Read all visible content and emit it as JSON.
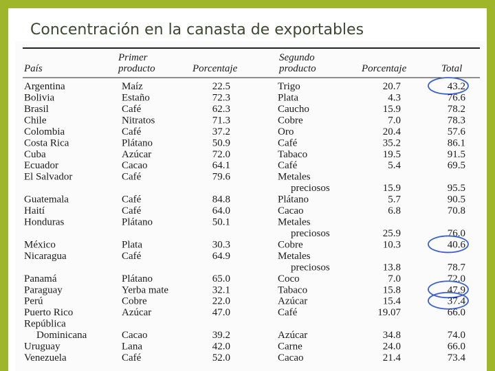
{
  "header": {
    "title": "Concentración en la canasta de exportables"
  },
  "table": {
    "columns": {
      "country": "País",
      "first": [
        "Primer",
        "producto"
      ],
      "pct1": "Porcentaje",
      "second": [
        "Segundo",
        "producto"
      ],
      "pct2": "Porcentaje",
      "total": "Total"
    },
    "rows": [
      {
        "country": [
          "Argentina"
        ],
        "first": "Maíz",
        "pct1": "22.5",
        "second": [
          "Trigo"
        ],
        "pct2": "20.7",
        "total": "43.2",
        "circled": true
      },
      {
        "country": [
          "Bolivia"
        ],
        "first": "Estaño",
        "pct1": "72.3",
        "second": [
          "Plata"
        ],
        "pct2": "4.3",
        "total": "76.6",
        "circled": false
      },
      {
        "country": [
          "Brasil"
        ],
        "first": "Café",
        "pct1": "62.3",
        "second": [
          "Caucho"
        ],
        "pct2": "15.9",
        "total": "78.2",
        "circled": false
      },
      {
        "country": [
          "Chile"
        ],
        "first": "Nitratos",
        "pct1": "71.3",
        "second": [
          "Cobre"
        ],
        "pct2": "7.0",
        "total": "78.3",
        "circled": false
      },
      {
        "country": [
          "Colombia"
        ],
        "first": "Café",
        "pct1": "37.2",
        "second": [
          "Oro"
        ],
        "pct2": "20.4",
        "total": "57.6",
        "circled": false
      },
      {
        "country": [
          "Costa Rica"
        ],
        "first": "Plátano",
        "pct1": "50.9",
        "second": [
          "Café"
        ],
        "pct2": "35.2",
        "total": "86.1",
        "circled": false
      },
      {
        "country": [
          "Cuba"
        ],
        "first": "Azúcar",
        "pct1": "72.0",
        "second": [
          "Tabaco"
        ],
        "pct2": "19.5",
        "total": "91.5",
        "circled": false
      },
      {
        "country": [
          "Ecuador"
        ],
        "first": "Cacao",
        "pct1": "64.1",
        "second": [
          "Café"
        ],
        "pct2": "5.4",
        "total": "69.5",
        "circled": false
      },
      {
        "country": [
          "El Salvador"
        ],
        "first": "Café",
        "pct1": "79.6",
        "second": [
          "Metales",
          "preciosos"
        ],
        "pct2": "15.9",
        "total": "95.5",
        "circled": false
      },
      {
        "country": [
          "Guatemala"
        ],
        "first": "Café",
        "pct1": "84.8",
        "second": [
          "Plátano"
        ],
        "pct2": "5.7",
        "total": "90.5",
        "circled": false
      },
      {
        "country": [
          "Haití"
        ],
        "first": "Café",
        "pct1": "64.0",
        "second": [
          "Cacao"
        ],
        "pct2": "6.8",
        "total": "70.8",
        "circled": false
      },
      {
        "country": [
          "Honduras"
        ],
        "first": "Plátano",
        "pct1": "50.1",
        "second": [
          "Metales",
          "preciosos"
        ],
        "pct2": "25.9",
        "total": "76.0",
        "circled": false
      },
      {
        "country": [
          "México"
        ],
        "first": "Plata",
        "pct1": "30.3",
        "second": [
          "Cobre"
        ],
        "pct2": "10.3",
        "total": "40.6",
        "circled": true
      },
      {
        "country": [
          "Nicaragua"
        ],
        "first": "Café",
        "pct1": "64.9",
        "second": [
          "Metales",
          "preciosos"
        ],
        "pct2": "13.8",
        "total": "78.7",
        "circled": false
      },
      {
        "country": [
          "Panamá"
        ],
        "first": "Plátano",
        "pct1": "65.0",
        "second": [
          "Coco"
        ],
        "pct2": "7.0",
        "total": "72.0",
        "circled": false
      },
      {
        "country": [
          "Paraguay"
        ],
        "first": "Yerba mate",
        "pct1": "32.1",
        "second": [
          "Tabaco"
        ],
        "pct2": "15.8",
        "total": "47.9",
        "circled": true
      },
      {
        "country": [
          "Perú"
        ],
        "first": "Cobre",
        "pct1": "22.0",
        "second": [
          "Azúcar"
        ],
        "pct2": "15.4",
        "total": "37.4",
        "circled": true
      },
      {
        "country": [
          "Puerto Rico"
        ],
        "first": "Azúcar",
        "pct1": "47.0",
        "second": [
          "Café"
        ],
        "pct2": "19.07",
        "total": "66.0",
        "circled": false
      },
      {
        "country": [
          "República",
          "Dominicana"
        ],
        "first": "Cacao",
        "pct1": "39.2",
        "second": [
          "Azúcar"
        ],
        "pct2": "34.8",
        "total": "74.0",
        "circled": false
      },
      {
        "country": [
          "Uruguay"
        ],
        "first": "Lana",
        "pct1": "42.0",
        "second": [
          "Carne"
        ],
        "pct2": "24.0",
        "total": "66.0",
        "circled": false
      },
      {
        "country": [
          "Venezuela"
        ],
        "first": "Café",
        "pct1": "52.0",
        "second": [
          "Cacao"
        ],
        "pct2": "21.4",
        "total": "73.4",
        "circled": false
      }
    ]
  }
}
